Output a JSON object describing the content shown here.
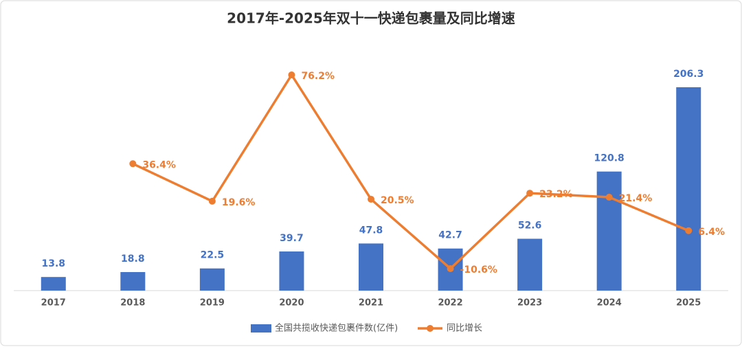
{
  "chart_data": {
    "type": "bar-line",
    "title": "2017年-2025年双十一快递包裹量及同比增速",
    "categories": [
      "2017",
      "2018",
      "2019",
      "2020",
      "2021",
      "2022",
      "2023",
      "2024",
      "2025"
    ],
    "series": [
      {
        "name": "全国共揽收快递包裹件数(亿件)",
        "type": "bar",
        "color": "#4472c4",
        "values": [
          13.8,
          18.8,
          22.5,
          39.7,
          47.8,
          42.7,
          52.6,
          120.8,
          206.3
        ]
      },
      {
        "name": "同比增长",
        "type": "line",
        "axis": "y2",
        "color": "#ed7d31",
        "values": [
          null,
          36.4,
          19.6,
          76.2,
          20.5,
          -10.6,
          23.2,
          21.4,
          6.4
        ],
        "value_labels": [
          null,
          "36.4%",
          "19.6%",
          "76.2%",
          "20.5%",
          "-10.6%",
          "23.2%",
          "21.4%",
          "6.4%"
        ]
      }
    ],
    "legend": "bottom"
  }
}
